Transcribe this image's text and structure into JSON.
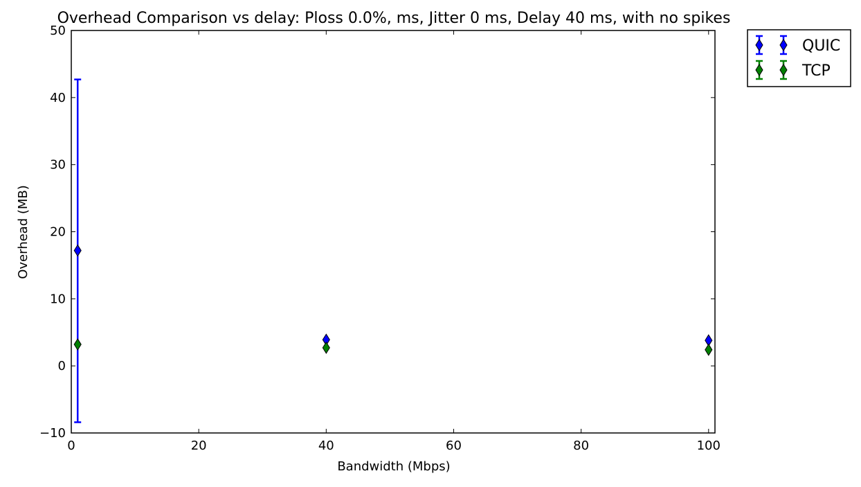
{
  "chart_data": {
    "type": "scatter",
    "title": "Overhead Comparison vs delay: Ploss 0.0%, ms, Jitter 0 ms, Delay 40 ms, with no spikes",
    "xlabel": "Bandwidth (Mbps)",
    "ylabel": "Overhead (MB)",
    "xlim": [
      0,
      101
    ],
    "ylim": [
      -10,
      50
    ],
    "xticks": [
      0,
      20,
      40,
      60,
      80,
      100
    ],
    "yticks": [
      -10,
      0,
      10,
      20,
      30,
      40,
      50
    ],
    "grid": false,
    "legend_position": "outside-top-right",
    "series": [
      {
        "name": "QUIC",
        "color": "#0000ff",
        "marker": "thin-diamond",
        "points": [
          {
            "x": 1,
            "y": 17.2,
            "yerr_low": -8.4,
            "yerr_high": 42.7
          },
          {
            "x": 40,
            "y": 3.9,
            "yerr_low": 3.9,
            "yerr_high": 3.9
          },
          {
            "x": 100,
            "y": 3.8,
            "yerr_low": 3.8,
            "yerr_high": 3.8
          }
        ]
      },
      {
        "name": "TCP",
        "color": "#008000",
        "marker": "thin-diamond",
        "points": [
          {
            "x": 1,
            "y": 3.2,
            "yerr_low": 3.2,
            "yerr_high": 3.2
          },
          {
            "x": 40,
            "y": 2.7,
            "yerr_low": 2.7,
            "yerr_high": 2.7
          },
          {
            "x": 100,
            "y": 2.4,
            "yerr_low": 2.4,
            "yerr_high": 2.4
          }
        ]
      }
    ]
  }
}
